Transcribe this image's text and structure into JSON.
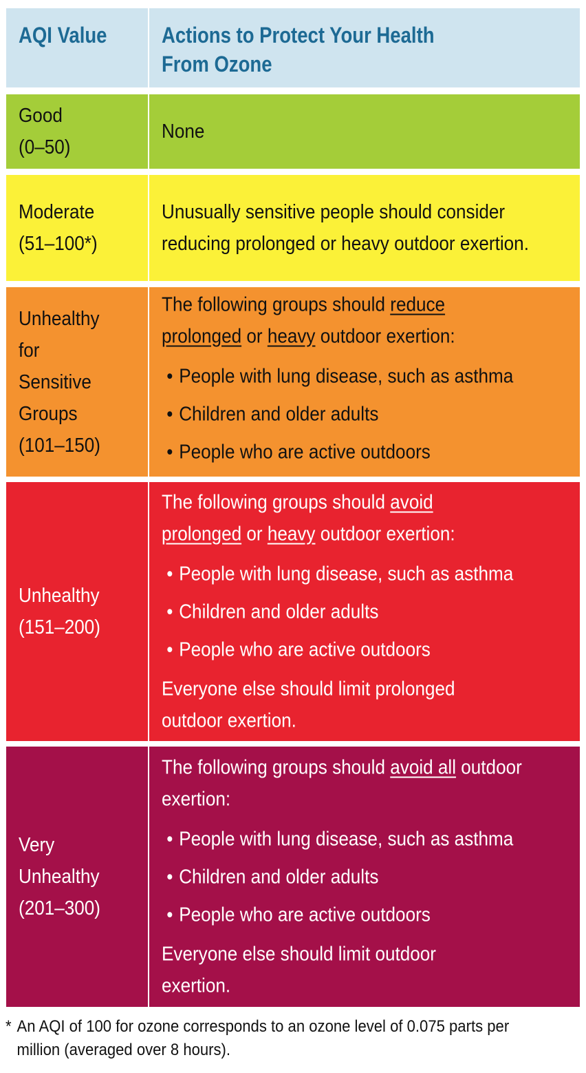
{
  "header": {
    "col1": "AQI Value",
    "col2_line1": "Actions to Protect Your Health",
    "col2_line2": "From Ozone"
  },
  "colors": {
    "header_bg": "#cfe4ef",
    "header_text": "#1d6a94",
    "good": "#a4cd39",
    "moderate": "#fbf138",
    "usg": "#f4922f",
    "unhealthy": "#e8232f",
    "very_unhealthy": "#a41049"
  },
  "rows": {
    "good": {
      "name": "Good",
      "range": "(0–50)",
      "action": "None"
    },
    "moderate": {
      "name": "Moderate",
      "range": "(51–100*)",
      "action": "Unusually sensitive people should consider reducing prolonged  or heavy outdoor exertion."
    },
    "usg": {
      "name_line1": "Unhealthy",
      "name_line2": "for",
      "name_line3": "Sensitive",
      "name_line4": "Groups",
      "range": "(101–150)",
      "intro_pre": "The following groups should ",
      "intro_u1": "reduce prolonged",
      "intro_mid": " or ",
      "intro_u2": "heavy",
      "intro_post": " outdoor exertion:",
      "bullets": [
        "People with lung disease, such as asthma",
        "Children and older adults",
        "People who are active outdoors"
      ]
    },
    "unhealthy": {
      "name": "Unhealthy",
      "range": "(151–200)",
      "intro_pre": "The following groups should ",
      "intro_u1": "avoid prolonged",
      "intro_mid": " or ",
      "intro_u2": "heavy",
      "intro_post": " outdoor exertion:",
      "bullets": [
        "People with lung disease, such as asthma",
        "Children and older adults",
        "People who are active outdoors"
      ],
      "closing": "Everyone else should limit prolonged outdoor exertion."
    },
    "very_unhealthy": {
      "name_line1": "Very",
      "name_line2": "Unhealthy",
      "range": "(201–300)",
      "intro_pre": "The following groups should ",
      "intro_u1": "avoid all",
      "intro_post": " outdoor exertion:",
      "bullets": [
        "People with lung disease, such as asthma",
        "Children and older adults",
        "People who are active outdoors"
      ],
      "closing": "Everyone else should limit outdoor exertion."
    }
  },
  "footnote": {
    "marker": "*",
    "text": "An AQI of 100 for ozone corresponds to an ozone level of 0.075 parts per million (averaged over 8 hours)."
  }
}
